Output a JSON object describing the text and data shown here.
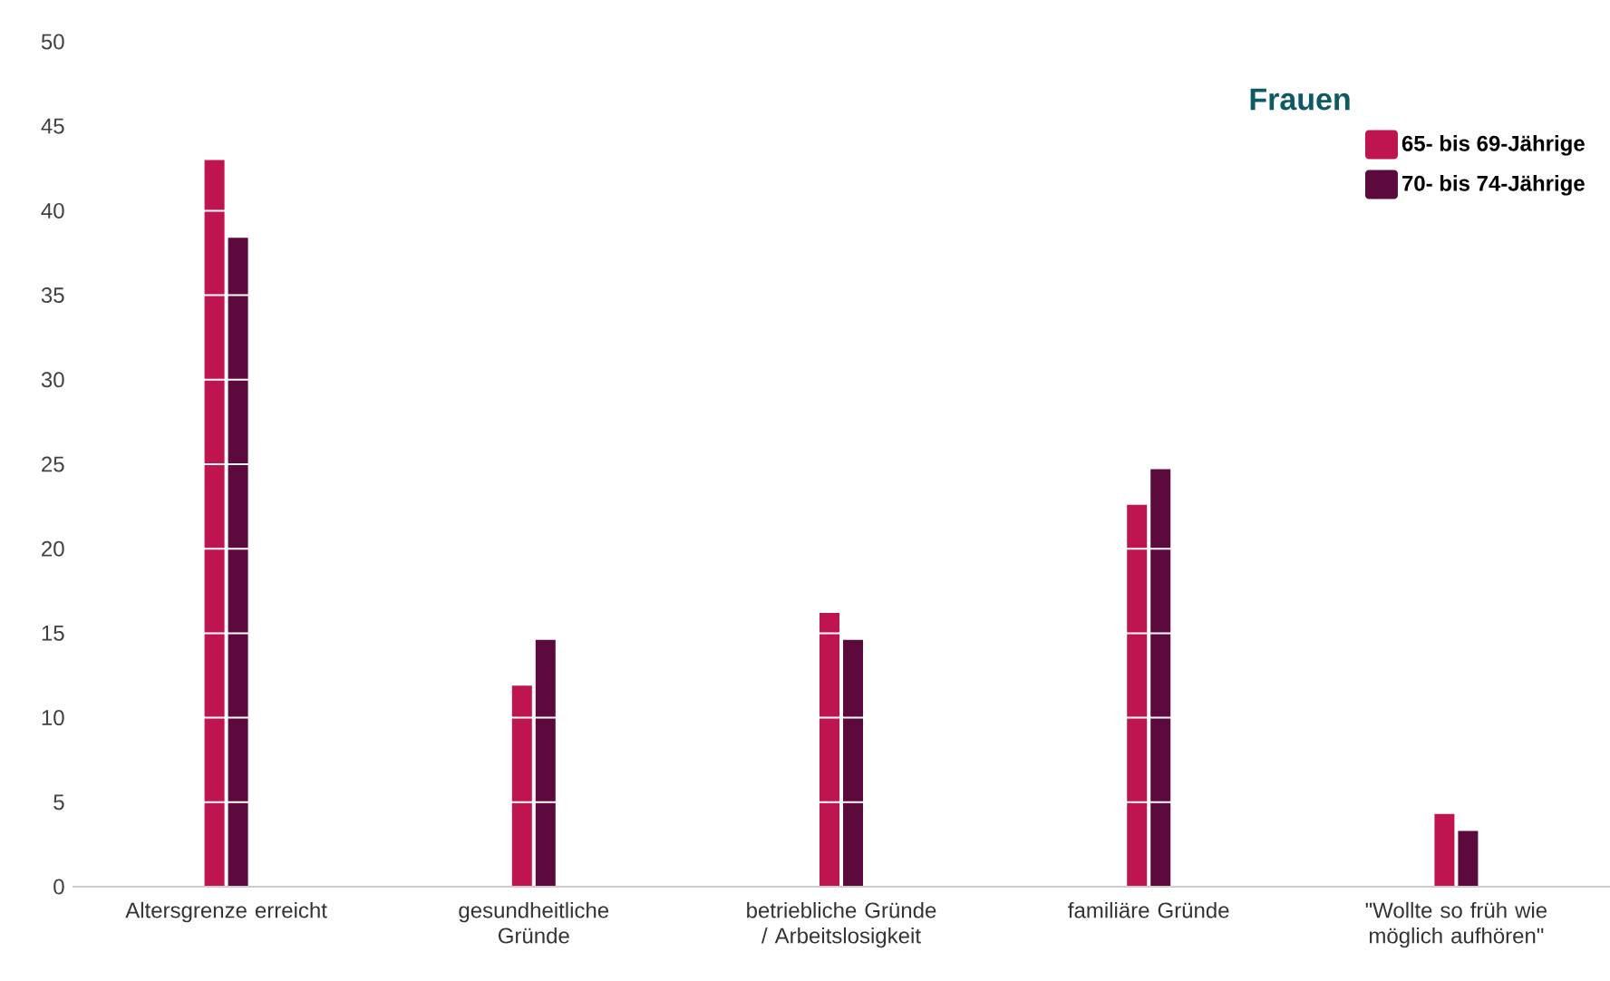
{
  "chart_data": {
    "type": "bar",
    "legend_title": "Frauen",
    "categories": [
      "Altersgrenze erreicht",
      "gesundheitliche Gründe",
      "betriebliche Gründe / Arbeitslosigkeit",
      "familiäre Gründe",
      "\"Wollte so früh wie möglich aufhören\""
    ],
    "series": [
      {
        "name": "65- bis 69-Jährige",
        "color": "#be1550",
        "values": [
          43.0,
          11.9,
          16.2,
          22.6,
          4.3
        ]
      },
      {
        "name": "70- bis 74-Jährige",
        "color": "#5c0a3e",
        "values": [
          38.4,
          14.6,
          14.6,
          24.7,
          3.3
        ]
      }
    ],
    "ylim": [
      0,
      50
    ],
    "yticks": [
      0,
      5,
      10,
      15,
      20,
      25,
      30,
      35,
      40,
      45,
      50
    ],
    "grid": "y",
    "legend": "top right"
  }
}
